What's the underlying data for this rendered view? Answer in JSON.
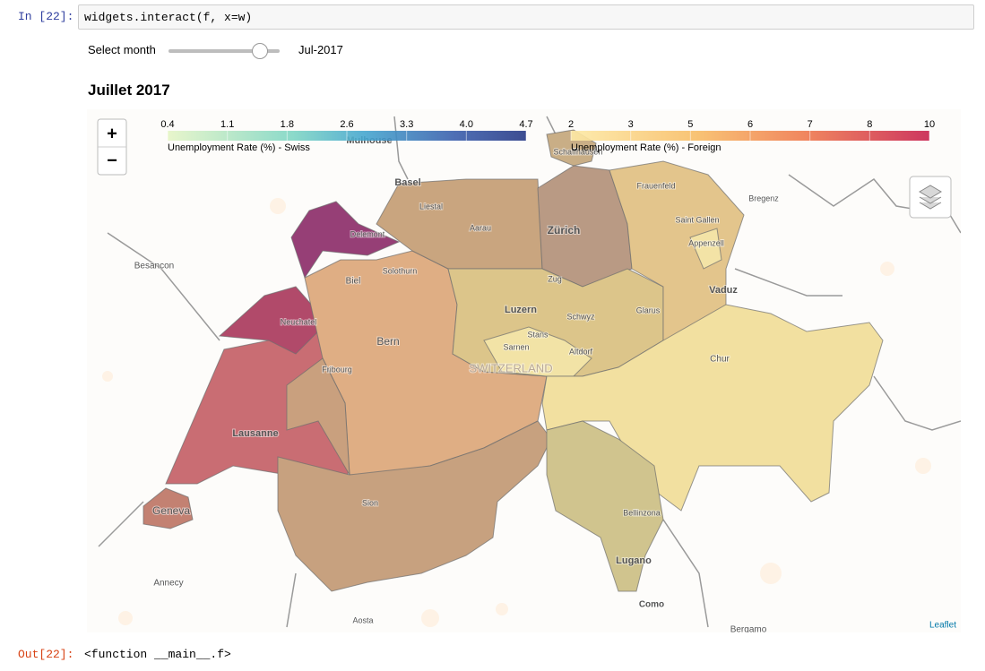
{
  "cell": {
    "in_prompt": "In [22]:",
    "code": "widgets.interact(f, x=w)",
    "out_prompt": "Out[22]:",
    "output": "<function __main__.f>"
  },
  "widget": {
    "label": "Select month",
    "value": "Jul-2017"
  },
  "map": {
    "title": "Juillet 2017",
    "zoom_in": "+",
    "zoom_out": "−",
    "attribution": "Leaflet",
    "legends": [
      {
        "label": "Unemployment Rate (%) - Swiss",
        "ticks": [
          "0.4",
          "1.1",
          "1.8",
          "2.6",
          "3.3",
          "4.0",
          "4.7"
        ]
      },
      {
        "label": "Unemployment Rate (%) - Foreign",
        "ticks": [
          "2",
          "3",
          "5",
          "6",
          "7",
          "8",
          "10"
        ]
      }
    ],
    "places": [
      "Basel",
      "Delemont",
      "Mulhouse",
      "Frauenfeld",
      "Bregenz",
      "Saint Gallen",
      "Appenzell",
      "Zürich",
      "Aarau",
      "Liestal",
      "Solothurn",
      "Biel",
      "Vaduz",
      "Zug",
      "Luzern",
      "Schwyz",
      "Glarus",
      "Stans",
      "Sarnen",
      "Altdorf",
      "SWITZERLAND",
      "Chur",
      "Neuchatel",
      "Fribourg",
      "Bern",
      "Besancon",
      "Lausanne",
      "Geneva",
      "Sion",
      "Bellinzona",
      "Lugano",
      "Como",
      "Annecy",
      "Aosta",
      "Bergamo",
      "Schaffhausen"
    ]
  }
}
